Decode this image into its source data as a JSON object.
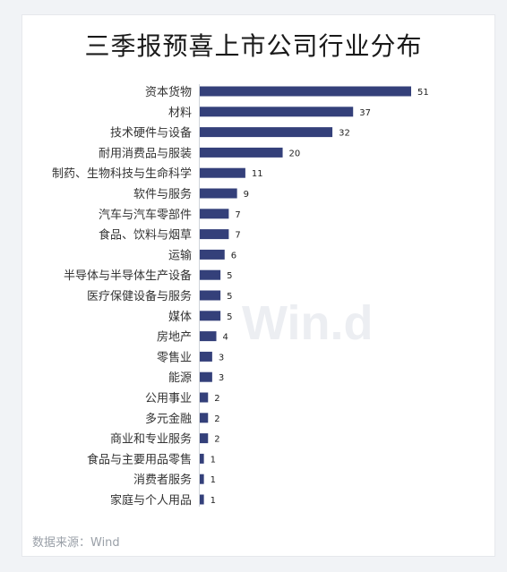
{
  "chart_data": {
    "type": "bar",
    "orientation": "horizontal",
    "title": "三季报预喜上市公司行业分布",
    "categories": [
      "资本货物",
      "材料",
      "技术硬件与设备",
      "耐用消费品与服装",
      "制药、生物科技与生命科学",
      "软件与服务",
      "汽车与汽车零部件",
      "食品、饮料与烟草",
      "运输",
      "半导体与半导体生产设备",
      "医疗保健设备与服务",
      "媒体",
      "房地产",
      "零售业",
      "能源",
      "公用事业",
      "多元金融",
      "商业和专业服务",
      "食品与主要用品零售",
      "消费者服务",
      "家庭与个人用品"
    ],
    "values": [
      51,
      37,
      32,
      20,
      11,
      9,
      7,
      7,
      6,
      5,
      5,
      5,
      4,
      3,
      3,
      2,
      2,
      2,
      1,
      1,
      1
    ],
    "bar_color": "#34407a"
  },
  "source": "数据来源：Wind",
  "watermark": "Win.d"
}
